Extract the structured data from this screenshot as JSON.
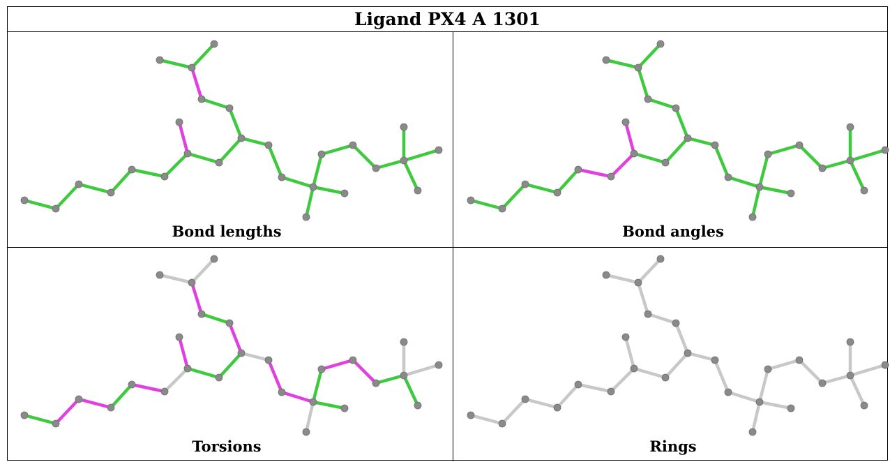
{
  "title": "Ligand PX4 A 1301",
  "panels": [
    {
      "caption": "Bond lengths"
    },
    {
      "caption": "Bond angles"
    },
    {
      "caption": "Torsions"
    },
    {
      "caption": "Rings"
    }
  ],
  "colors": {
    "green": "#3ec93e",
    "magenta": "#e040e0",
    "gray": "#c8c8c8",
    "atom": "#8a8a8a"
  },
  "legend": []
}
